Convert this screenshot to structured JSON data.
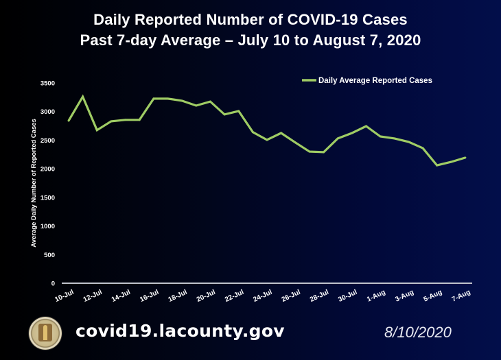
{
  "title_line1": "Daily Reported Number of COVID-19 Cases",
  "title_line2": "Past 7-day Average – July 10 to August 7, 2020",
  "footer": {
    "url": "covid19.lacounty.gov",
    "date": "8/10/2020",
    "seal_icon": "county-seal-icon"
  },
  "colors": {
    "line": "#9fcc64",
    "axis": "#bfc3cc",
    "text": "#ffffff"
  },
  "chart_data": {
    "type": "line",
    "title": "Daily Reported Number of COVID-19 Cases – Past 7-day Average",
    "xlabel": "",
    "ylabel": "Average Daily Number of Reported Cases",
    "ylim": [
      0,
      3500
    ],
    "yticks": [
      0,
      500,
      1000,
      1500,
      2000,
      2500,
      3000,
      3500
    ],
    "grid": false,
    "legend_position": "top-right",
    "x": [
      "10-Jul",
      "11-Jul",
      "12-Jul",
      "13-Jul",
      "14-Jul",
      "15-Jul",
      "16-Jul",
      "17-Jul",
      "18-Jul",
      "19-Jul",
      "20-Jul",
      "21-Jul",
      "22-Jul",
      "23-Jul",
      "24-Jul",
      "25-Jul",
      "26-Jul",
      "27-Jul",
      "28-Jul",
      "29-Jul",
      "30-Jul",
      "31-Jul",
      "1-Aug",
      "2-Aug",
      "3-Aug",
      "4-Aug",
      "5-Aug",
      "6-Aug",
      "7-Aug"
    ],
    "xtick_labels": [
      "10-Jul",
      "12-Jul",
      "14-Jul",
      "16-Jul",
      "18-Jul",
      "20-Jul",
      "22-Jul",
      "24-Jul",
      "26-Jul",
      "28-Jul",
      "30-Jul",
      "1-Aug",
      "3-Aug",
      "5-Aug",
      "7-Aug"
    ],
    "series": [
      {
        "name": "Daily Average Reported Cases",
        "values": [
          2840,
          3260,
          2675,
          2830,
          2855,
          2855,
          3225,
          3225,
          3190,
          3105,
          3175,
          2950,
          3010,
          2640,
          2505,
          2625,
          2460,
          2300,
          2290,
          2530,
          2625,
          2745,
          2565,
          2530,
          2470,
          2360,
          2060,
          2120,
          2195
        ]
      }
    ]
  }
}
